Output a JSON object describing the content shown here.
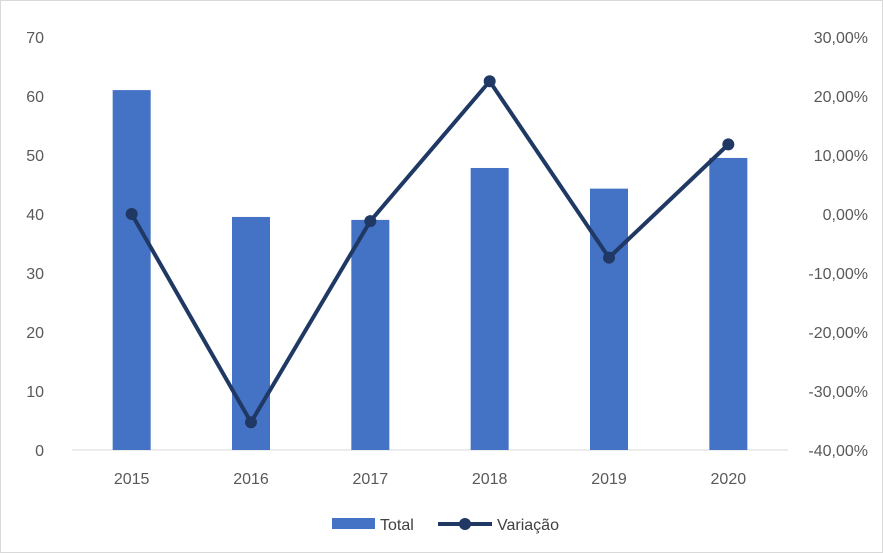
{
  "chart_data": {
    "type": "bar+line",
    "title": "",
    "categories": [
      "2015",
      "2016",
      "2017",
      "2018",
      "2019",
      "2020"
    ],
    "series": [
      {
        "name": "Total",
        "type": "bar",
        "axis": "left",
        "color": "#4472c4",
        "values": [
          61,
          39.5,
          39,
          47.8,
          44.3,
          49.5
        ]
      },
      {
        "name": "Variação",
        "type": "line",
        "axis": "right",
        "color": "#1f3864",
        "marker": "circle",
        "values": [
          0,
          -35.3,
          -1.2,
          22.5,
          -7.4,
          11.8
        ],
        "unit": "%"
      }
    ],
    "y_left": {
      "min": 0,
      "max": 70,
      "step": 10,
      "ticks": [
        "0",
        "10",
        "20",
        "30",
        "40",
        "50",
        "60",
        "70"
      ]
    },
    "y_right": {
      "min": -40,
      "max": 30,
      "step": 10,
      "ticks": [
        "-40,00%",
        "-30,00%",
        "-20,00%",
        "-10,00%",
        "0,00%",
        "10,00%",
        "20,00%",
        "30,00%"
      ]
    },
    "grid": false,
    "legend": "bottom-center"
  }
}
